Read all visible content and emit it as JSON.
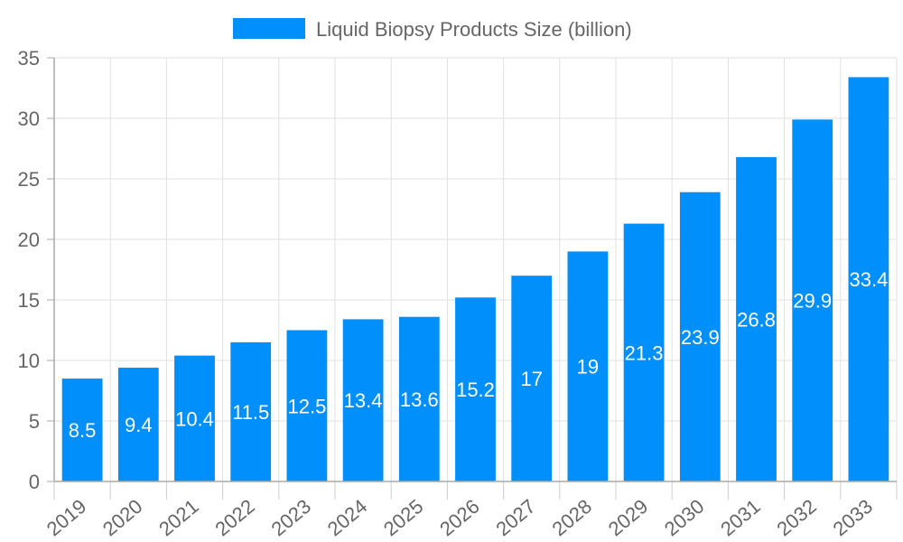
{
  "chart_data": {
    "type": "bar",
    "categories": [
      "2019",
      "2020",
      "2021",
      "2022",
      "2023",
      "2024",
      "2025",
      "2026",
      "2027",
      "2028",
      "2029",
      "2030",
      "2031",
      "2032",
      "2033"
    ],
    "series": [
      {
        "name": "Liquid Biopsy Products Size (billion)",
        "values": [
          8.5,
          9.4,
          10.4,
          11.5,
          12.5,
          13.4,
          13.6,
          15.2,
          17,
          19,
          21.3,
          23.9,
          26.8,
          29.9,
          33.4
        ],
        "color": "#008ffb"
      }
    ],
    "yticks": [
      0,
      5,
      10,
      15,
      20,
      25,
      30,
      35
    ],
    "ylim": [
      0,
      35
    ],
    "grid": true,
    "legend": "top",
    "data_labels": true
  }
}
